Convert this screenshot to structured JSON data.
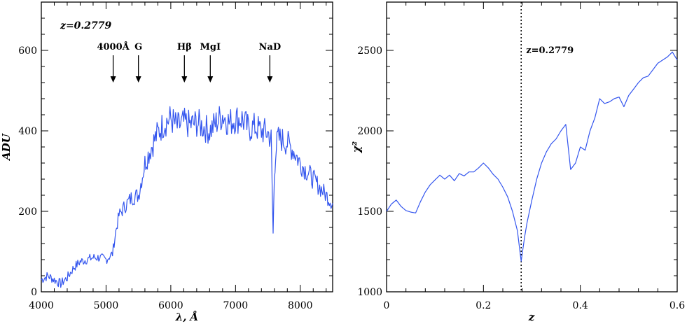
{
  "chart_data": [
    {
      "type": "line",
      "xlabel": "λ, Å",
      "ylabel": "ADU",
      "xlim": [
        4000,
        8500
      ],
      "ylim": [
        0,
        720
      ],
      "xticks": [
        4000,
        5000,
        6000,
        7000,
        8000
      ],
      "yticks": [
        0,
        200,
        400,
        600
      ],
      "color": "#3355ee",
      "annotation": "z=0.2779",
      "lines": [
        {
          "label": "4000Å",
          "x": 5110
        },
        {
          "label": "G",
          "x": 5500
        },
        {
          "label": "Hβ",
          "x": 6210
        },
        {
          "label": "MgI",
          "x": 6610
        },
        {
          "label": "NaD",
          "x": 7530
        }
      ],
      "series": [
        {
          "x": [
            4000,
            4100,
            4200,
            4300,
            4400,
            4500,
            4600,
            4700,
            4800,
            4900,
            5000,
            5100,
            5150,
            5200,
            5300,
            5400,
            5500,
            5600,
            5700,
            5800,
            5900,
            6000,
            6100,
            6200,
            6300,
            6400,
            6500,
            6600,
            6700,
            6800,
            6900,
            7000,
            7100,
            7200,
            7300,
            7400,
            7500,
            7550,
            7580,
            7600,
            7620,
            7650,
            7700,
            7800,
            7900,
            8000,
            8100,
            8200,
            8300,
            8400,
            8500
          ],
          "y": [
            30,
            40,
            30,
            20,
            35,
            60,
            75,
            80,
            85,
            85,
            80,
            95,
            150,
            190,
            215,
            235,
            240,
            320,
            360,
            395,
            420,
            430,
            410,
            420,
            415,
            420,
            410,
            400,
            420,
            440,
            420,
            430,
            430,
            405,
            410,
            400,
            395,
            380,
            145,
            290,
            350,
            380,
            380,
            370,
            350,
            320,
            300,
            280,
            260,
            240,
            220
          ]
        }
      ]
    },
    {
      "type": "line",
      "xlabel": "z",
      "ylabel": "χ²",
      "xlim": [
        0,
        0.6
      ],
      "ylim": [
        1000,
        2800
      ],
      "xticks": [
        0,
        0.2,
        0.4,
        0.6
      ],
      "yticks": [
        1000,
        1500,
        2000,
        2500
      ],
      "color": "#3355ee",
      "vline": {
        "x": 0.2779,
        "label": "z=0.2779"
      },
      "series": [
        {
          "x": [
            0.0,
            0.01,
            0.02,
            0.03,
            0.04,
            0.05,
            0.06,
            0.07,
            0.08,
            0.09,
            0.1,
            0.11,
            0.12,
            0.13,
            0.14,
            0.15,
            0.16,
            0.17,
            0.18,
            0.19,
            0.2,
            0.21,
            0.22,
            0.23,
            0.24,
            0.25,
            0.26,
            0.27,
            0.2779,
            0.285,
            0.29,
            0.3,
            0.31,
            0.32,
            0.33,
            0.34,
            0.35,
            0.36,
            0.37,
            0.38,
            0.39,
            0.4,
            0.41,
            0.42,
            0.43,
            0.44,
            0.45,
            0.46,
            0.47,
            0.48,
            0.49,
            0.5,
            0.51,
            0.52,
            0.53,
            0.54,
            0.55,
            0.56,
            0.57,
            0.58,
            0.59,
            0.6
          ],
          "y": [
            1500,
            1545,
            1570,
            1530,
            1505,
            1495,
            1490,
            1560,
            1620,
            1665,
            1695,
            1725,
            1700,
            1725,
            1690,
            1735,
            1720,
            1745,
            1745,
            1770,
            1800,
            1770,
            1730,
            1700,
            1650,
            1590,
            1500,
            1380,
            1190,
            1340,
            1430,
            1570,
            1700,
            1800,
            1870,
            1920,
            1950,
            2000,
            2040,
            1760,
            1800,
            1900,
            1880,
            2000,
            2080,
            2200,
            2170,
            2180,
            2200,
            2210,
            2150,
            2220,
            2260,
            2300,
            2330,
            2340,
            2380,
            2420,
            2440,
            2460,
            2490,
            2440
          ]
        }
      ]
    }
  ]
}
